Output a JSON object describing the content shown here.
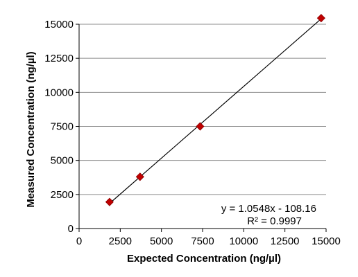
{
  "chart_data": {
    "type": "scatter",
    "xlabel": "Expected Concentration (ng/µl)",
    "ylabel": "Measured Concentration (ng/µl)",
    "xlim": [
      0,
      15000
    ],
    "ylim": [
      0,
      15000
    ],
    "x_ticks": [
      "0",
      "2500",
      "5000",
      "7500",
      "10000",
      "12500",
      "15000"
    ],
    "y_ticks": [
      "0",
      "2500",
      "5000",
      "7500",
      "10000",
      "12500",
      "15000"
    ],
    "grid": "horizontal",
    "series": [
      {
        "x": [
          1850,
          3700,
          7350,
          14700
        ],
        "y": [
          1950,
          3800,
          7500,
          15450
        ],
        "marker": "diamond",
        "color": "#c00000"
      }
    ],
    "trendline": {
      "type": "linear",
      "slope": 1.0548,
      "intercept": -108.16,
      "color": "#000000"
    },
    "annotations": {
      "equation": "y = 1.0548x - 108.16",
      "r_squared": "R² = 0.9997"
    }
  }
}
